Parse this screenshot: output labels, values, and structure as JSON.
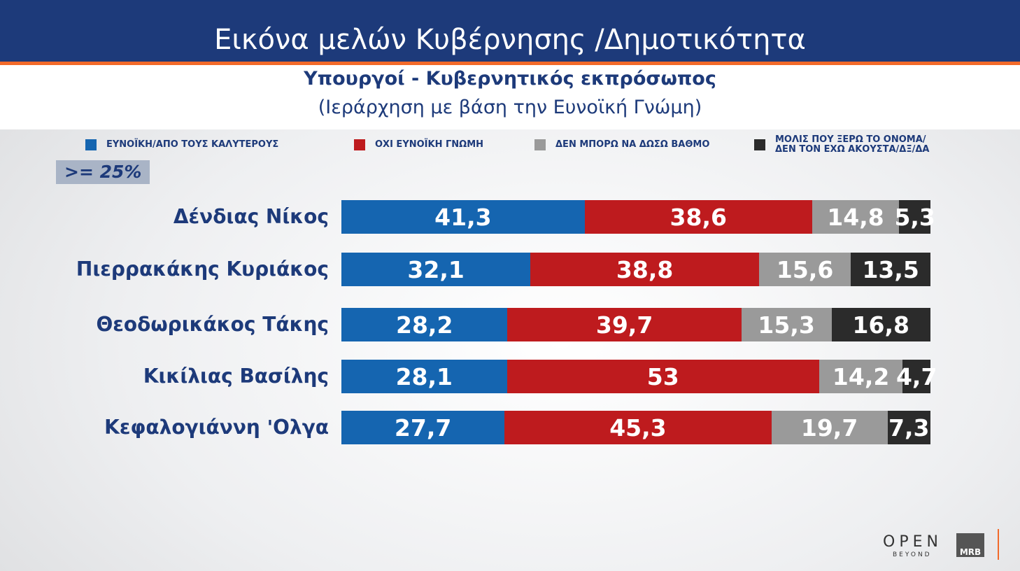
{
  "chart_data": {
    "type": "stacked-bar-horizontal",
    "title": "Εικόνα μελών Κυβέρνησης /Δημοτικότητα",
    "subtitle": "Υπουργοί - Κυβερνητικός εκπρόσωπος",
    "note": "(Ιεράρχηση με βάση την Ευνοϊκή Γνώμη)",
    "annotation": ">= 25%",
    "categories": [
      "Δένδιας Νίκος",
      "Πιερρακάκης Κυριάκος",
      "Θεοδωρικάκος Τάκης",
      "Κικίλιας Βασίλης",
      "Κεφαλογιάννη 'Ολγα"
    ],
    "series": [
      {
        "name": "ΕΥΝΟΪΚΗ/ΑΠΟ ΤΟΥΣ ΚΑΛΥΤΕΡΟΥΣ",
        "color": "#1565b0",
        "values": [
          41.3,
          32.1,
          28.2,
          28.1,
          27.7
        ],
        "value_labels": [
          "41,3",
          "32,1",
          "28,2",
          "28,1",
          "27,7"
        ]
      },
      {
        "name": "ΟΧΙ ΕΥΝΟΪΚΗ ΓΝΩΜΗ",
        "color": "#be1b1e",
        "values": [
          38.6,
          38.8,
          39.7,
          53,
          45.3
        ],
        "value_labels": [
          "38,6",
          "38,8",
          "39,7",
          "53",
          "45,3"
        ]
      },
      {
        "name": "ΔΕΝ ΜΠΟΡΩ ΝΑ ΔΩΣΩ ΒΑΘΜΟ",
        "color": "#9a9a9a",
        "values": [
          14.8,
          15.6,
          15.3,
          14.2,
          19.7
        ],
        "value_labels": [
          "14,8",
          "15,6",
          "15,3",
          "14,2",
          "19,7"
        ]
      },
      {
        "name": "ΜΟΛΙΣ ΠΟΥ ΞΕΡΩ ΤΟ ΟΝΟΜΑ/ ΔΕΝ ΤΟΝ ΕΧΩ ΑΚΟΥΣΤΑ/ΔΞ/ΔΑ",
        "color": "#2b2b2b",
        "values": [
          5.3,
          13.5,
          16.8,
          4.7,
          7.3
        ],
        "value_labels": [
          "5,3",
          "13,5",
          "16,8",
          "4,7",
          "7,3"
        ]
      }
    ]
  },
  "logos": [
    "OPEN",
    "BEYOND",
    "MRB"
  ]
}
